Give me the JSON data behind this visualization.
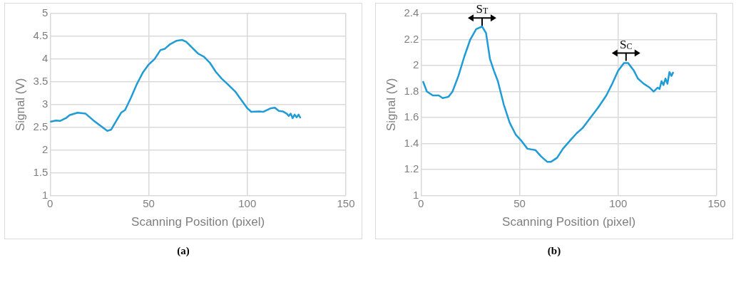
{
  "chart_data": [
    {
      "type": "line",
      "xlabel": "Scanning Position (pixel)",
      "ylabel": "Signal (V)",
      "annotations": [
        "(a)"
      ],
      "x": [
        0,
        3,
        5,
        8,
        10,
        14,
        18,
        22,
        26,
        29,
        31,
        33,
        36,
        38,
        41,
        44,
        47,
        50,
        53,
        56,
        58,
        61,
        64,
        67,
        69,
        72,
        75,
        78,
        81,
        84,
        87,
        90,
        94,
        97,
        100,
        102,
        106,
        108,
        112,
        114,
        116,
        118,
        120,
        121,
        122,
        123,
        124,
        125,
        126,
        127
      ],
      "series": [
        {
          "color": "#1f9bd7",
          "values": [
            2.62,
            2.65,
            2.64,
            2.7,
            2.77,
            2.82,
            2.8,
            2.65,
            2.52,
            2.42,
            2.45,
            2.6,
            2.82,
            2.88,
            3.15,
            3.45,
            3.7,
            3.88,
            4.0,
            4.2,
            4.22,
            4.33,
            4.4,
            4.42,
            4.38,
            4.25,
            4.12,
            4.05,
            3.92,
            3.72,
            3.57,
            3.45,
            3.28,
            3.1,
            2.92,
            2.84,
            2.85,
            2.84,
            2.92,
            2.93,
            2.86,
            2.85,
            2.8,
            2.75,
            2.8,
            2.7,
            2.78,
            2.72,
            2.78,
            2.7
          ]
        }
      ],
      "xlim": [
        0,
        150
      ],
      "xticks": [
        0,
        50,
        100,
        150
      ],
      "ylim": [
        1,
        5
      ],
      "yticks": [
        1,
        1.5,
        2,
        2.5,
        3,
        3.5,
        4,
        4.5,
        5
      ],
      "grid": true,
      "legend": false,
      "marker": "none",
      "line_style": "solid"
    },
    {
      "type": "line",
      "xlabel": "Scanning Position (pixel)",
      "ylabel": "Signal (V)",
      "annotations": [
        "(b)",
        {
          "text": "S$_{T}$",
          "x": 31,
          "y": 2.3
        },
        {
          "text": "S$_{C}$",
          "x": 104,
          "y": 2.03
        }
      ],
      "x": [
        1,
        3,
        6,
        9,
        11,
        14,
        16,
        19,
        22,
        25,
        28,
        31,
        33,
        35,
        37,
        39,
        42,
        45,
        48,
        51,
        54,
        58,
        61,
        64,
        66,
        69,
        72,
        76,
        79,
        82,
        86,
        90,
        94,
        97,
        100,
        103,
        105,
        108,
        110,
        113,
        116,
        118,
        120,
        121,
        122,
        123,
        124,
        125,
        126,
        127,
        128
      ],
      "series": [
        {
          "color": "#1f9bd7",
          "values": [
            1.88,
            1.8,
            1.77,
            1.77,
            1.75,
            1.76,
            1.8,
            1.92,
            2.07,
            2.2,
            2.28,
            2.3,
            2.25,
            2.05,
            1.96,
            1.88,
            1.7,
            1.56,
            1.47,
            1.42,
            1.36,
            1.35,
            1.3,
            1.26,
            1.26,
            1.29,
            1.36,
            1.43,
            1.48,
            1.52,
            1.6,
            1.68,
            1.77,
            1.86,
            1.96,
            2.02,
            2.02,
            1.96,
            1.9,
            1.86,
            1.83,
            1.8,
            1.83,
            1.82,
            1.88,
            1.85,
            1.9,
            1.86,
            1.95,
            1.92,
            1.95
          ]
        }
      ],
      "xlim": [
        0,
        150
      ],
      "xticks": [
        0,
        50,
        100,
        150
      ],
      "ylim": [
        1,
        2.4
      ],
      "yticks": [
        1,
        1.2,
        1.4,
        1.6,
        1.8,
        2,
        2.2,
        2.4
      ],
      "grid": true,
      "legend": false,
      "marker": "none",
      "line_style": "solid"
    }
  ]
}
